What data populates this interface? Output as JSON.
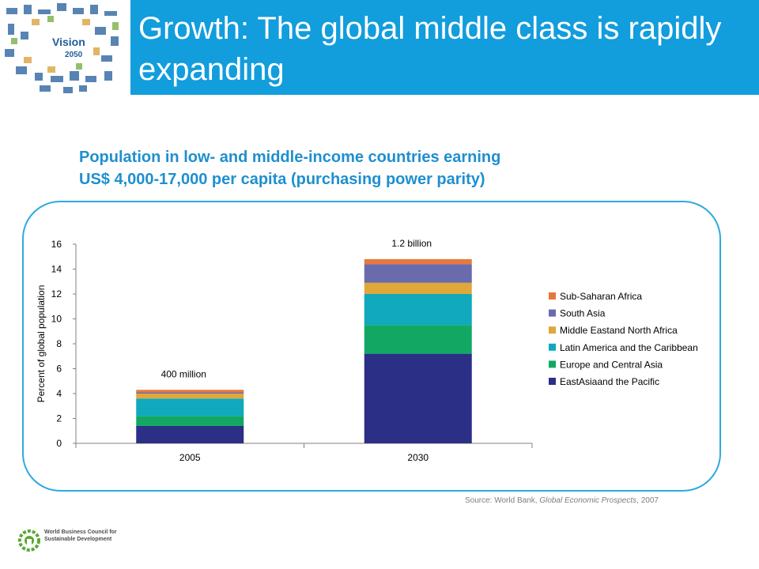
{
  "header": {
    "title": "Growth: The global middle class is rapidly expanding",
    "band_color": "#129ddd",
    "logo": {
      "line1": "Vision",
      "line2": "2050"
    }
  },
  "chart_heading": {
    "line1": "Population in low- and middle-income countries earning",
    "line2": "US$ 4,000-17,000 per capita (purchasing power parity)"
  },
  "chart_data": {
    "type": "bar",
    "stacked": true,
    "categories": [
      "2005",
      "2030"
    ],
    "ylabel": "Percent of global population",
    "xlabel": "",
    "ylim": [
      0,
      16
    ],
    "yticks": [
      0,
      2,
      4,
      6,
      8,
      10,
      12,
      14,
      16
    ],
    "grid": false,
    "legend_position": "right",
    "annotations": [
      "400 million",
      "1.2 billion"
    ],
    "series": [
      {
        "name": "EastAsiaand the Pacific",
        "color": "#2b2f86",
        "values": [
          1.4,
          7.2
        ]
      },
      {
        "name": "Europe and Central Asia",
        "color": "#12a863",
        "values": [
          0.8,
          2.3
        ]
      },
      {
        "name": "Latin America and the Caribbean",
        "color": "#10a9bd",
        "values": [
          1.4,
          2.5
        ]
      },
      {
        "name": "Middle Eastand North Africa",
        "color": "#e0a739",
        "values": [
          0.4,
          0.9
        ]
      },
      {
        "name": "South Asia",
        "color": "#6a6bad",
        "values": [
          0.1,
          1.5
        ]
      },
      {
        "name": "Sub-Saharan Africa",
        "color": "#e8783d",
        "values": [
          0.2,
          0.4
        ]
      }
    ]
  },
  "source": {
    "prefix": "Source: World Bank, ",
    "title": "Global Economic Prospects",
    "suffix": ", 2007"
  },
  "footer_logo": {
    "line1": "World Business Council for",
    "line2": "Sustainable Development"
  }
}
